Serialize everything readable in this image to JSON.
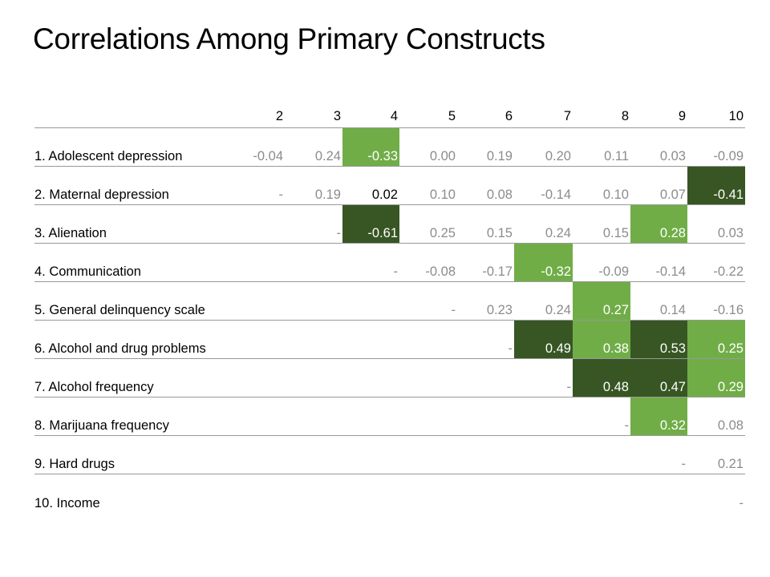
{
  "title": "Correlations Among Primary Constructs",
  "colors": {
    "light_green": "#70ad47",
    "dark_green": "#375623",
    "value_text": "#8c8c8c"
  },
  "table": {
    "columns": [
      "2",
      "3",
      "4",
      "5",
      "6",
      "7",
      "8",
      "9",
      "10"
    ],
    "rows": [
      {
        "label": "1. Adolescent depression",
        "cells": [
          {
            "v": "-0.04"
          },
          {
            "v": "0.24"
          },
          {
            "v": "-0.33",
            "hl": "light"
          },
          {
            "v": "0.00"
          },
          {
            "v": "0.19"
          },
          {
            "v": "0.20"
          },
          {
            "v": "0.11"
          },
          {
            "v": "0.03"
          },
          {
            "v": "-0.09"
          }
        ]
      },
      {
        "label": "2. Maternal depression",
        "cells": [
          {
            "v": "-"
          },
          {
            "v": "0.19"
          },
          {
            "v": "0.02",
            "tone": "dark"
          },
          {
            "v": "0.10"
          },
          {
            "v": "0.08"
          },
          {
            "v": "-0.14"
          },
          {
            "v": "0.10"
          },
          {
            "v": "0.07"
          },
          {
            "v": "-0.41",
            "hl": "dark"
          }
        ]
      },
      {
        "label": "3. Alienation",
        "cells": [
          {
            "v": ""
          },
          {
            "v": "-"
          },
          {
            "v": "-0.61",
            "hl": "dark"
          },
          {
            "v": "0.25"
          },
          {
            "v": "0.15"
          },
          {
            "v": "0.24"
          },
          {
            "v": "0.15"
          },
          {
            "v": "0.28",
            "hl": "light"
          },
          {
            "v": "0.03"
          }
        ]
      },
      {
        "label": "4. Communication",
        "cells": [
          {
            "v": ""
          },
          {
            "v": ""
          },
          {
            "v": "-"
          },
          {
            "v": "-0.08"
          },
          {
            "v": "-0.17"
          },
          {
            "v": "-0.32",
            "hl": "light"
          },
          {
            "v": "-0.09"
          },
          {
            "v": "-0.14"
          },
          {
            "v": "-0.22"
          }
        ]
      },
      {
        "label": "5. General delinquency scale",
        "cells": [
          {
            "v": ""
          },
          {
            "v": ""
          },
          {
            "v": ""
          },
          {
            "v": "-"
          },
          {
            "v": "0.23"
          },
          {
            "v": "0.24"
          },
          {
            "v": "0.27",
            "hl": "light"
          },
          {
            "v": "0.14"
          },
          {
            "v": "-0.16"
          }
        ]
      },
      {
        "label": "6. Alcohol and drug problems",
        "cells": [
          {
            "v": ""
          },
          {
            "v": ""
          },
          {
            "v": ""
          },
          {
            "v": ""
          },
          {
            "v": "-"
          },
          {
            "v": "0.49",
            "hl": "dark"
          },
          {
            "v": "0.38",
            "hl": "light"
          },
          {
            "v": "0.53",
            "hl": "dark"
          },
          {
            "v": "0.25",
            "hl": "light"
          }
        ]
      },
      {
        "label": "7. Alcohol frequency",
        "cells": [
          {
            "v": ""
          },
          {
            "v": ""
          },
          {
            "v": ""
          },
          {
            "v": ""
          },
          {
            "v": ""
          },
          {
            "v": "-"
          },
          {
            "v": "0.48",
            "hl": "dark"
          },
          {
            "v": "0.47",
            "hl": "dark"
          },
          {
            "v": "0.29",
            "hl": "light"
          }
        ]
      },
      {
        "label": "8. Marijuana frequency",
        "cells": [
          {
            "v": ""
          },
          {
            "v": ""
          },
          {
            "v": ""
          },
          {
            "v": ""
          },
          {
            "v": ""
          },
          {
            "v": ""
          },
          {
            "v": "-"
          },
          {
            "v": "0.32",
            "hl": "light"
          },
          {
            "v": "0.08"
          }
        ]
      },
      {
        "label": "9. Hard drugs",
        "cells": [
          {
            "v": ""
          },
          {
            "v": ""
          },
          {
            "v": ""
          },
          {
            "v": ""
          },
          {
            "v": ""
          },
          {
            "v": ""
          },
          {
            "v": ""
          },
          {
            "v": "-"
          },
          {
            "v": "0.21"
          }
        ]
      },
      {
        "label": "10. Income",
        "cells": [
          {
            "v": ""
          },
          {
            "v": ""
          },
          {
            "v": ""
          },
          {
            "v": ""
          },
          {
            "v": ""
          },
          {
            "v": ""
          },
          {
            "v": ""
          },
          {
            "v": ""
          },
          {
            "v": "-"
          }
        ]
      }
    ]
  }
}
